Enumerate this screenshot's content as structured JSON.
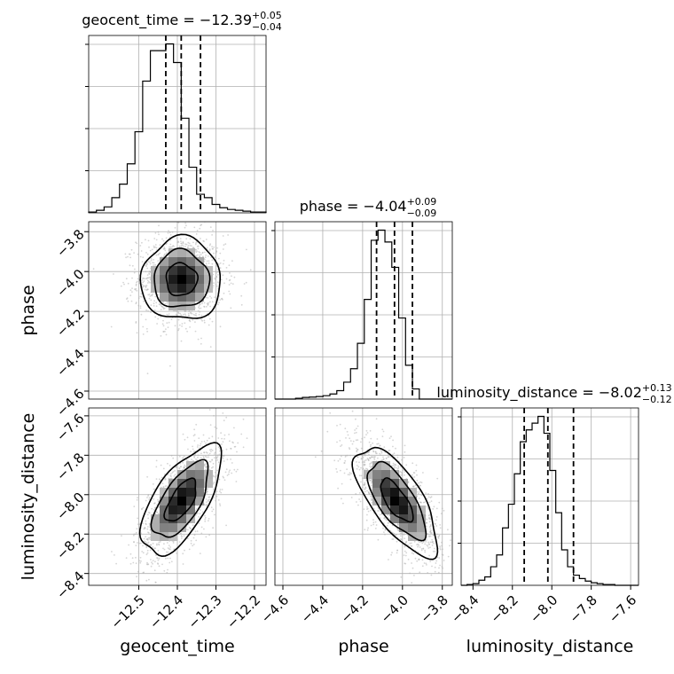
{
  "chart_data": [
    {
      "type": "histogram",
      "panel": "diag-0",
      "title_base": "geocent_time = −12.39",
      "title_sup": "+0.05",
      "title_sub": "−0.04",
      "xlim": [
        -12.63,
        -12.17
      ],
      "bin_width": 0.02,
      "bin_starts": [
        -12.63,
        -12.61,
        -12.59,
        -12.57,
        -12.55,
        -12.53,
        -12.51,
        -12.49,
        -12.47,
        -12.45,
        -12.43,
        -12.41,
        -12.39,
        -12.37,
        -12.35,
        -12.33,
        -12.31,
        -12.29,
        -12.27,
        -12.25,
        -12.23,
        -12.21,
        -12.19
      ],
      "heights": [
        0.005,
        0.015,
        0.035,
        0.09,
        0.17,
        0.29,
        0.48,
        0.78,
        0.96,
        0.96,
        1.0,
        0.89,
        0.56,
        0.27,
        0.11,
        0.09,
        0.05,
        0.03,
        0.02,
        0.015,
        0.01,
        0.005,
        0.005
      ],
      "quantiles": [
        -12.43,
        -12.39,
        -12.34
      ],
      "ylim": [
        0,
        1.05
      ]
    },
    {
      "type": "histogram",
      "panel": "diag-1",
      "title_base": "phase = −4.04",
      "title_sup": "+0.09",
      "title_sub": "−0.09",
      "xlim": [
        -4.64,
        -3.75
      ],
      "bin_width": 0.0345,
      "bin_starts": [
        -4.64,
        -4.6055,
        -4.571,
        -4.5365,
        -4.502,
        -4.4675,
        -4.433,
        -4.3985,
        -4.364,
        -4.3295,
        -4.295,
        -4.2605,
        -4.226,
        -4.1915,
        -4.157,
        -4.1225,
        -4.088,
        -4.0535,
        -4.019,
        -3.9845,
        -3.95,
        -3.9155,
        -3.881,
        -3.8465,
        -3.812,
        -3.7775
      ],
      "heights": [
        0.0,
        0.0,
        0.0,
        0.005,
        0.01,
        0.012,
        0.015,
        0.02,
        0.03,
        0.05,
        0.1,
        0.18,
        0.33,
        0.59,
        0.94,
        1.0,
        0.93,
        0.78,
        0.48,
        0.2,
        0.06,
        0.0,
        0.0,
        0.0,
        0.0,
        0.0
      ],
      "quantiles": [
        -4.13,
        -4.04,
        -3.95
      ],
      "ylim": [
        0,
        1.05
      ]
    },
    {
      "type": "histogram",
      "panel": "diag-2",
      "title_base": "luminosity_distance = −8.02",
      "title_sup": "+0.13",
      "title_sub": "−0.12",
      "xlim": [
        -8.46,
        -7.56
      ],
      "bin_width": 0.03,
      "bin_starts": [
        -8.46,
        -8.43,
        -8.4,
        -8.37,
        -8.34,
        -8.31,
        -8.28,
        -8.25,
        -8.22,
        -8.19,
        -8.16,
        -8.13,
        -8.1,
        -8.07,
        -8.04,
        -8.01,
        -7.98,
        -7.95,
        -7.92,
        -7.89,
        -7.86,
        -7.83,
        -7.8,
        -7.77,
        -7.74,
        -7.71,
        -7.68,
        -7.65,
        -7.62,
        -7.59
      ],
      "heights": [
        0.0,
        0.005,
        0.01,
        0.03,
        0.05,
        0.11,
        0.18,
        0.34,
        0.48,
        0.66,
        0.85,
        0.92,
        0.96,
        1.0,
        0.9,
        0.68,
        0.43,
        0.21,
        0.11,
        0.06,
        0.04,
        0.025,
        0.015,
        0.01,
        0.005,
        0.005,
        0.0,
        0.0,
        0.0,
        0.0
      ],
      "quantiles": [
        -8.14,
        -8.02,
        -7.89
      ],
      "ylim": [
        0,
        1.05
      ]
    },
    {
      "type": "contour-scatter",
      "panel": "geocent_time-phase",
      "xlim": [
        -12.63,
        -12.17
      ],
      "ylim": [
        -4.64,
        -3.75
      ],
      "center": [
        -12.39,
        -4.04
      ],
      "sigma": [
        0.045,
        0.09
      ],
      "correlation": 0.0
    },
    {
      "type": "contour-scatter",
      "panel": "geocent_time-luminosity_distance",
      "xlim": [
        -12.63,
        -12.17
      ],
      "ylim": [
        -8.46,
        -7.56
      ],
      "center": [
        -12.39,
        -8.03
      ],
      "sigma": [
        0.045,
        0.12
      ],
      "correlation": 0.65
    },
    {
      "type": "contour-scatter",
      "panel": "phase-luminosity_distance",
      "xlim": [
        -4.64,
        -3.75
      ],
      "ylim": [
        -8.46,
        -7.56
      ],
      "center": [
        -4.03,
        -8.03
      ],
      "sigma": [
        0.09,
        0.12
      ],
      "correlation": -0.7
    }
  ],
  "axes": {
    "geocent_time": {
      "label": "geocent_time",
      "ticks": [
        -12.5,
        -12.4,
        -12.3,
        -12.2
      ],
      "tick_labels": [
        "−12.5",
        "−12.4",
        "−12.3",
        "−12.2"
      ]
    },
    "phase": {
      "label": "phase",
      "ticks": [
        -4.6,
        -4.4,
        -4.2,
        -4.0,
        -3.8
      ],
      "tick_labels": [
        "−4.6",
        "−4.4",
        "−4.2",
        "−4.0",
        "−3.8"
      ]
    },
    "luminosity_distance": {
      "label": "luminosity_distance",
      "ticks": [
        -8.4,
        -8.2,
        -8.0,
        -7.8,
        -7.6
      ],
      "tick_labels": [
        "−8.4",
        "−8.2",
        "−8.0",
        "−7.8",
        "−7.6"
      ]
    }
  },
  "grid": true,
  "scatter_color": "#b3b3b3",
  "line_color": "#000000"
}
